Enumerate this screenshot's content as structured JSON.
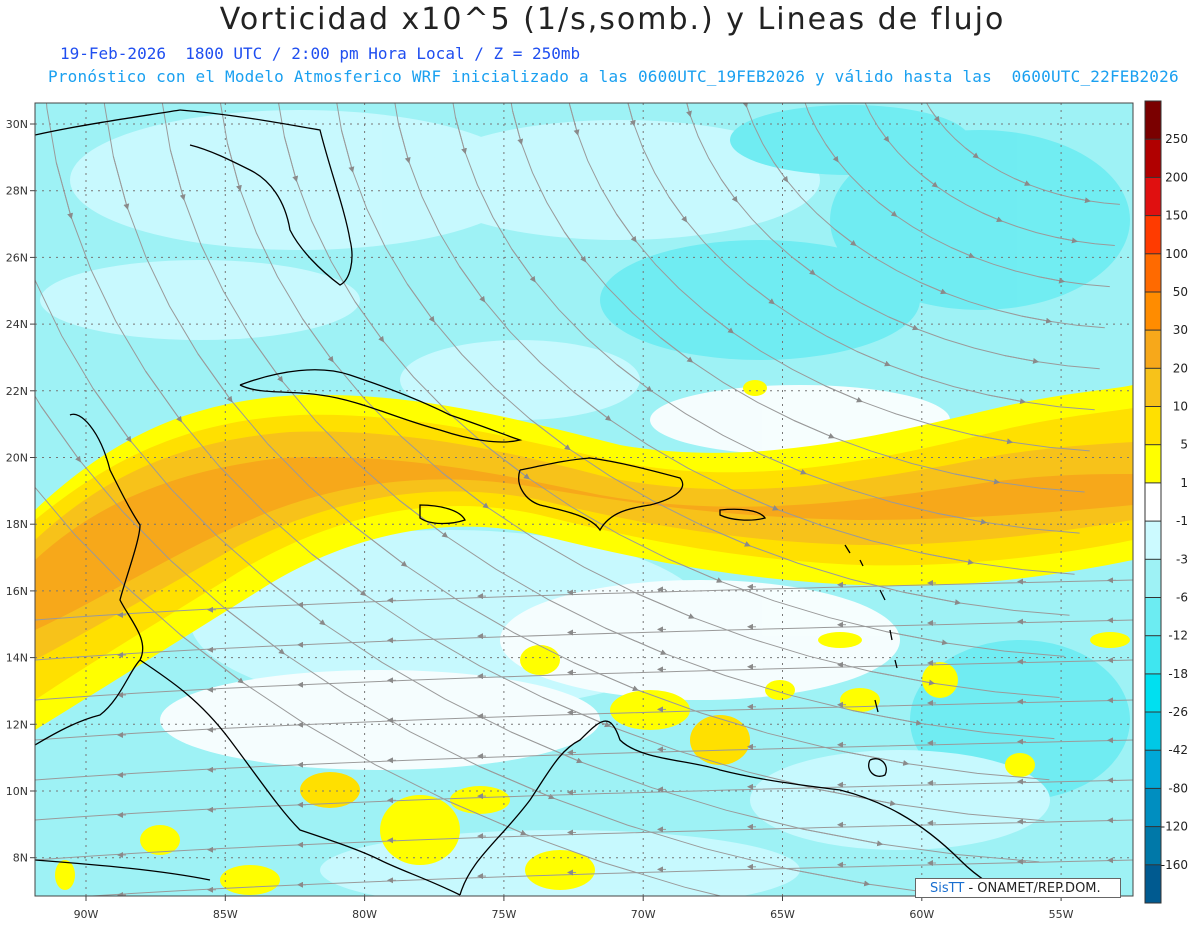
{
  "header": {
    "title": "Vorticidad x10^5 (1/s,somb.) y Lineas de flujo",
    "subtitle_1": "19-Feb-2026  1800 UTC / 2:00 pm Hora Local / Z = 250mb",
    "subtitle_2": "Pronóstico con el Modelo Atmosferico WRF inicializado a las 0600UTC_19FEB2026 y válido hasta las  0600UTC_22FEB2026"
  },
  "axes": {
    "longitudes": [
      "90W",
      "85W",
      "80W",
      "75W",
      "70W",
      "65W",
      "60W",
      "55W"
    ],
    "latitudes": [
      "30N",
      "28N",
      "26N",
      "24N",
      "22N",
      "20N",
      "18N",
      "16N",
      "14N",
      "12N",
      "10N",
      "8N"
    ]
  },
  "colorbar": {
    "labels": [
      "250",
      "200",
      "150",
      "100",
      "50",
      "30",
      "20",
      "10",
      "5",
      "1",
      "-1",
      "-3",
      "-6",
      "-12",
      "-18",
      "-26",
      "-42",
      "-80",
      "-120",
      "-160"
    ],
    "colors": [
      "#7a0000",
      "#b00000",
      "#e01010",
      "#ff3b00",
      "#ff6a00",
      "#ff8c00",
      "#f7a81a",
      "#f7c21a",
      "#ffe000",
      "#ffff00",
      "#ffffff",
      "#ccfaff",
      "#9ef2f5",
      "#6cecf2",
      "#3fe6f0",
      "#00e0f0",
      "#00c8e6",
      "#00a8d8",
      "#008ec0",
      "#0078a8",
      "#005a90"
    ]
  },
  "credit": {
    "brand": "SisTT",
    "text": "- ONAMET/REP.DOM."
  }
}
